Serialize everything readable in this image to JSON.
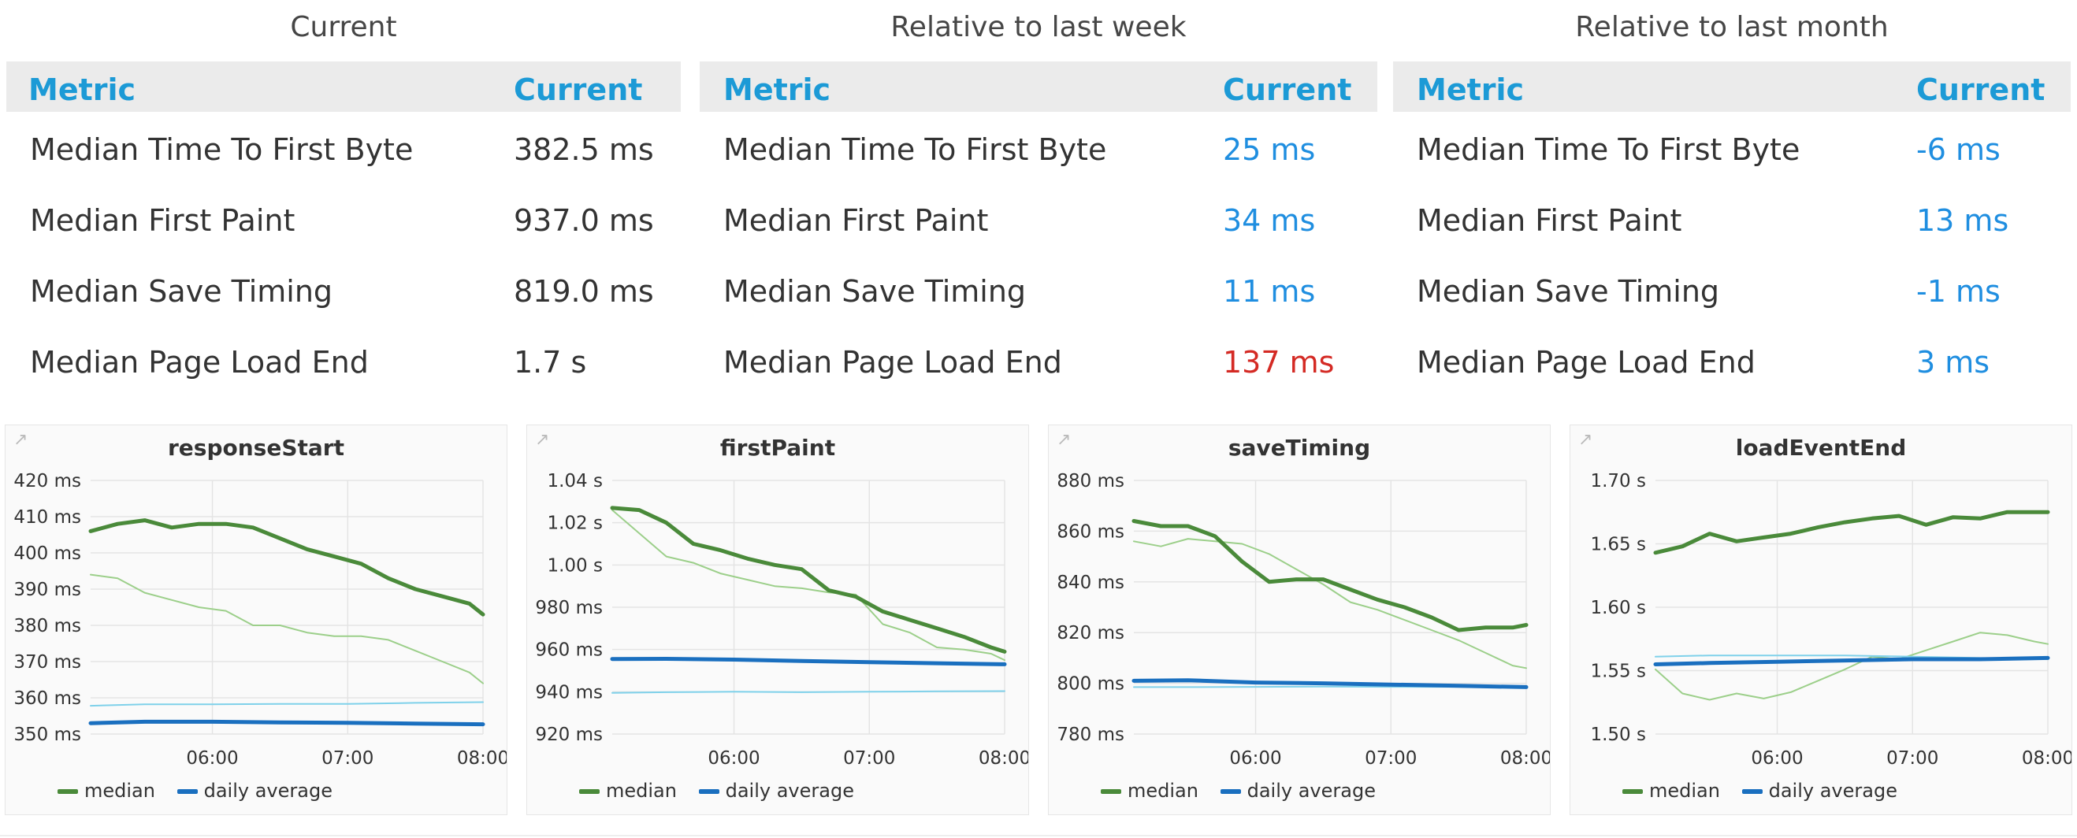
{
  "tables": [
    {
      "title": "Current",
      "col_metric": "Metric",
      "col_current": "Current",
      "rows": [
        {
          "metric": "Median Time To First Byte",
          "value": "382.5 ms",
          "color": "#333333"
        },
        {
          "metric": "Median First Paint",
          "value": "937.0 ms",
          "color": "#333333"
        },
        {
          "metric": "Median Save Timing",
          "value": "819.0 ms",
          "color": "#333333"
        },
        {
          "metric": "Median Page Load End",
          "value": "1.7 s",
          "color": "#333333"
        }
      ]
    },
    {
      "title": "Relative to last week",
      "col_metric": "Metric",
      "col_current": "Current",
      "rows": [
        {
          "metric": "Median Time To First Byte",
          "value": "25 ms",
          "color": "#1f8ee0"
        },
        {
          "metric": "Median First Paint",
          "value": "34 ms",
          "color": "#1f8ee0"
        },
        {
          "metric": "Median Save Timing",
          "value": "11 ms",
          "color": "#1f8ee0"
        },
        {
          "metric": "Median Page Load End",
          "value": "137 ms",
          "color": "#d42a24"
        }
      ]
    },
    {
      "title": "Relative to last month",
      "col_metric": "Metric",
      "col_current": "Current",
      "rows": [
        {
          "metric": "Median Time To First Byte",
          "value": "-6 ms",
          "color": "#1f8ee0"
        },
        {
          "metric": "Median First Paint",
          "value": "13 ms",
          "color": "#1f8ee0"
        },
        {
          "metric": "Median Save Timing",
          "value": "-1 ms",
          "color": "#1f8ee0"
        },
        {
          "metric": "Median Page Load End",
          "value": "3 ms",
          "color": "#1f8ee0"
        }
      ]
    }
  ],
  "legend": {
    "median": "median",
    "daily_average": "daily average"
  },
  "colors": {
    "median": "#4a8a3a",
    "median_light": "#9ccf8a",
    "daily_average": "#1a6fbf",
    "daily_average_light": "#7fd1ea"
  },
  "chart_data": [
    {
      "type": "line",
      "title": "responseStart",
      "y_ticks": [
        "420 ms",
        "410 ms",
        "400 ms",
        "390 ms",
        "380 ms",
        "370 ms",
        "360 ms",
        "350 ms"
      ],
      "ylim": [
        350,
        420
      ],
      "x_ticks": [
        "06:00",
        "07:00",
        "08:00"
      ],
      "x_tick_hours": [
        6,
        7,
        8
      ],
      "xlim": [
        5.1,
        8.0
      ],
      "series": [
        {
          "name": "median",
          "x": [
            5.1,
            5.3,
            5.5,
            5.7,
            5.9,
            6.1,
            6.3,
            6.5,
            6.7,
            6.9,
            7.1,
            7.3,
            7.5,
            7.7,
            7.9,
            8.0
          ],
          "values": [
            406,
            408,
            409,
            407,
            408,
            408,
            407,
            404,
            401,
            399,
            397,
            393,
            390,
            388,
            386,
            383
          ]
        },
        {
          "x": [
            5.1,
            5.3,
            5.5,
            5.7,
            5.9,
            6.1,
            6.3,
            6.5,
            6.7,
            6.9,
            7.1,
            7.3,
            7.5,
            7.7,
            7.9,
            8.0
          ],
          "values": [
            394,
            393,
            389,
            387,
            385,
            384,
            380,
            380,
            378,
            377,
            377,
            376,
            373,
            370,
            367,
            364
          ]
        },
        {
          "name": "daily average",
          "x": [
            5.1,
            5.5,
            6.0,
            6.5,
            7.0,
            7.5,
            8.0
          ],
          "values": [
            353,
            353.4,
            353.4,
            353.2,
            353.1,
            352.9,
            352.7
          ]
        },
        {
          "x": [
            5.1,
            5.5,
            6.0,
            6.5,
            7.0,
            7.5,
            8.0
          ],
          "values": [
            357.8,
            358.2,
            358.2,
            358.3,
            358.3,
            358.6,
            358.8
          ]
        }
      ]
    },
    {
      "type": "line",
      "title": "firstPaint",
      "y_ticks": [
        "1.04 s",
        "1.02 s",
        "1.00 s",
        "980 ms",
        "960 ms",
        "940 ms",
        "920 ms"
      ],
      "ylim": [
        920,
        1040
      ],
      "x_ticks": [
        "06:00",
        "07:00",
        "08:00"
      ],
      "x_tick_hours": [
        6,
        7,
        8
      ],
      "xlim": [
        5.1,
        8.0
      ],
      "series": [
        {
          "name": "median",
          "x": [
            5.1,
            5.3,
            5.5,
            5.7,
            5.9,
            6.1,
            6.3,
            6.5,
            6.7,
            6.9,
            7.1,
            7.3,
            7.5,
            7.7,
            7.9,
            8.0
          ],
          "values": [
            1027,
            1026,
            1020,
            1010,
            1007,
            1003,
            1000,
            998,
            988,
            985,
            978,
            974,
            970,
            966,
            961,
            959
          ]
        },
        {
          "x": [
            5.1,
            5.3,
            5.5,
            5.7,
            5.9,
            6.1,
            6.3,
            6.5,
            6.7,
            6.9,
            7.1,
            7.3,
            7.5,
            7.7,
            7.9,
            8.0
          ],
          "values": [
            1026,
            1015,
            1004,
            1001,
            996,
            993,
            990,
            989,
            987,
            986,
            972,
            968,
            961,
            960,
            958,
            955
          ]
        },
        {
          "name": "daily average",
          "x": [
            5.1,
            5.5,
            6.0,
            6.5,
            7.0,
            7.5,
            8.0
          ],
          "values": [
            955.5,
            955.6,
            955.2,
            954.6,
            954,
            953.5,
            953
          ]
        },
        {
          "x": [
            5.1,
            5.5,
            6.0,
            6.5,
            7.0,
            7.5,
            8.0
          ],
          "values": [
            939.5,
            939.8,
            940,
            939.8,
            940,
            940.2,
            940.3
          ]
        }
      ]
    },
    {
      "type": "line",
      "title": "saveTiming",
      "y_ticks": [
        "880 ms",
        "860 ms",
        "840 ms",
        "820 ms",
        "800 ms",
        "780 ms"
      ],
      "ylim": [
        780,
        880
      ],
      "x_ticks": [
        "06:00",
        "07:00",
        "08:00"
      ],
      "x_tick_hours": [
        6,
        7,
        8
      ],
      "xlim": [
        5.1,
        8.0
      ],
      "series": [
        {
          "name": "median",
          "x": [
            5.1,
            5.3,
            5.5,
            5.7,
            5.9,
            6.1,
            6.3,
            6.5,
            6.7,
            6.9,
            7.1,
            7.3,
            7.5,
            7.7,
            7.9,
            8.0
          ],
          "values": [
            864,
            862,
            862,
            858,
            848,
            840,
            841,
            841,
            837,
            833,
            830,
            826,
            821,
            822,
            822,
            823
          ]
        },
        {
          "x": [
            5.1,
            5.3,
            5.5,
            5.7,
            5.9,
            6.1,
            6.3,
            6.5,
            6.7,
            6.9,
            7.1,
            7.3,
            7.5,
            7.7,
            7.9,
            8.0
          ],
          "values": [
            856,
            854,
            857,
            856,
            855,
            851,
            845,
            839,
            832,
            829,
            825,
            821,
            817,
            812,
            807,
            806
          ]
        },
        {
          "name": "daily average",
          "x": [
            5.1,
            5.5,
            6.0,
            6.5,
            7.0,
            7.5,
            8.0
          ],
          "values": [
            801,
            801.2,
            800.3,
            800,
            799.5,
            799,
            798.5
          ]
        },
        {
          "x": [
            5.1,
            5.5,
            6.0,
            6.5,
            7.0,
            7.5,
            8.0
          ],
          "values": [
            798.5,
            798.5,
            798.6,
            798.7,
            798.6,
            798.6,
            798.5
          ]
        }
      ]
    },
    {
      "type": "line",
      "title": "loadEventEnd",
      "y_ticks": [
        "1.70 s",
        "1.65 s",
        "1.60 s",
        "1.55 s",
        "1.50 s"
      ],
      "ylim": [
        1.5,
        1.7
      ],
      "x_ticks": [
        "06:00",
        "07:00",
        "08:00"
      ],
      "x_tick_hours": [
        6,
        7,
        8
      ],
      "xlim": [
        5.1,
        8.0
      ],
      "series": [
        {
          "name": "median",
          "x": [
            5.1,
            5.3,
            5.5,
            5.7,
            5.9,
            6.1,
            6.3,
            6.5,
            6.7,
            6.9,
            7.1,
            7.3,
            7.5,
            7.7,
            7.9,
            8.0
          ],
          "values": [
            1.643,
            1.648,
            1.658,
            1.652,
            1.655,
            1.658,
            1.663,
            1.667,
            1.67,
            1.672,
            1.665,
            1.671,
            1.67,
            1.675,
            1.675,
            1.675
          ]
        },
        {
          "x": [
            5.1,
            5.3,
            5.5,
            5.7,
            5.9,
            6.1,
            6.3,
            6.5,
            6.7,
            6.9,
            7.1,
            7.3,
            7.5,
            7.7,
            7.9,
            8.0
          ],
          "values": [
            1.551,
            1.532,
            1.527,
            1.532,
            1.528,
            1.533,
            1.542,
            1.551,
            1.561,
            1.559,
            1.566,
            1.573,
            1.58,
            1.578,
            1.573,
            1.571
          ]
        },
        {
          "name": "daily average",
          "x": [
            5.1,
            5.5,
            6.0,
            6.5,
            7.0,
            7.5,
            8.0
          ],
          "values": [
            1.555,
            1.556,
            1.557,
            1.558,
            1.559,
            1.559,
            1.56
          ]
        },
        {
          "x": [
            5.1,
            5.5,
            6.0,
            6.5,
            7.0,
            7.5,
            8.0
          ],
          "values": [
            1.561,
            1.562,
            1.562,
            1.562,
            1.561,
            1.56,
            1.559
          ]
        }
      ]
    }
  ]
}
